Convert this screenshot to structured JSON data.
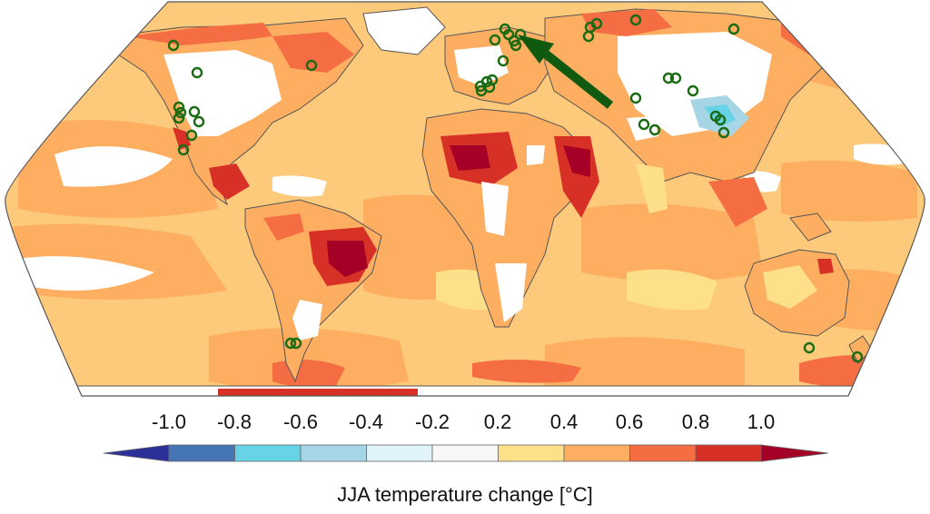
{
  "colorbar": {
    "title": "JJA temperature change [°C]",
    "tick_labels": [
      "-1.0",
      "-0.8",
      "-0.6",
      "-0.4",
      "-0.2",
      "0.2",
      "0.4",
      "0.6",
      "0.8",
      "1.0"
    ],
    "bins": [
      {
        "color": "#2b2f97"
      },
      {
        "color": "#4575b4"
      },
      {
        "color": "#67d3e6"
      },
      {
        "color": "#a6d6e6"
      },
      {
        "color": "#e0f3f8"
      },
      {
        "color": "#f7f7f7"
      },
      {
        "color": "#fee08b"
      },
      {
        "color": "#fdae61"
      },
      {
        "color": "#f46d43"
      },
      {
        "color": "#d73027"
      },
      {
        "color": "#a50026"
      }
    ]
  },
  "map": {
    "projection": "robinson",
    "ocean_base_color": "#fdc97a",
    "land_base_color": "#fdae61",
    "coastline_color": "#555555",
    "marker_color": "#1a6b12",
    "arrow_color": "#0f5a0f"
  }
}
